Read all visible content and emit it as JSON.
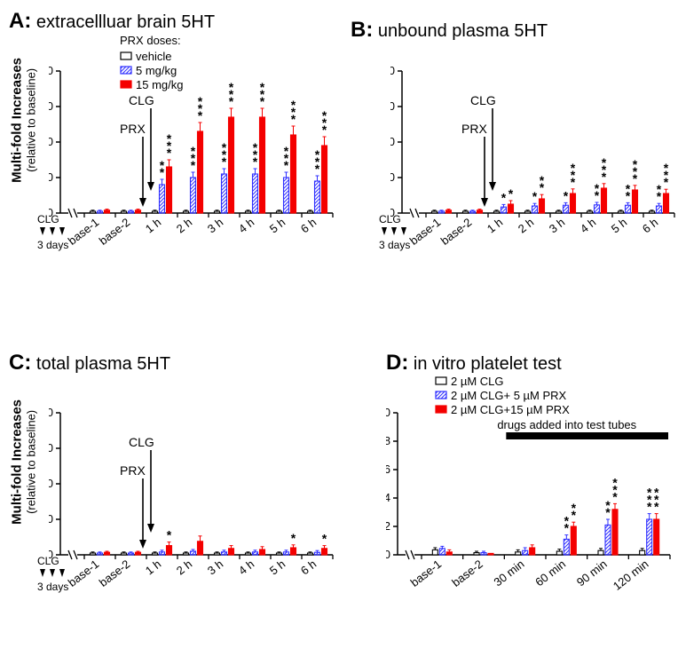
{
  "colors": {
    "white": "#ffffff",
    "black": "#000000",
    "red": "#f40000",
    "blue": "#3030ff"
  },
  "barWidth": 6,
  "groupGap": 3,
  "panelA": {
    "letter": "A:",
    "title": "extracellluar brain 5HT",
    "yLabel": "Multi-fold Increases",
    "ySub": "(relative to baseline)",
    "yMax": 40,
    "yTick": 10,
    "clgLabel": "CLG",
    "daysLabel": "3 days",
    "arrows": {
      "clg": "CLG",
      "prx": "PRX"
    },
    "legend": {
      "title": "PRX doses:",
      "items": [
        {
          "label": "vehicle",
          "type": "open"
        },
        {
          "label": "5 mg/kg",
          "type": "hatch"
        },
        {
          "label": "15 mg/kg",
          "type": "filled"
        }
      ]
    },
    "categories": [
      "base-1",
      "base-2",
      "1 h",
      "2 h",
      "3 h",
      "4 h",
      "5 h",
      "6 h"
    ],
    "series": {
      "vehicle": [
        0.5,
        0.5,
        0.5,
        0.5,
        0.5,
        0.5,
        0.5,
        0.5
      ],
      "low": [
        0.5,
        0.5,
        8,
        10,
        11,
        11,
        10,
        9
      ],
      "high": [
        0.8,
        0.8,
        13,
        23,
        27,
        27,
        22,
        19
      ]
    },
    "errors": {
      "vehicle": [
        0.3,
        0.3,
        0.3,
        0.3,
        0.3,
        0.3,
        0.3,
        0.3
      ],
      "low": [
        0.3,
        0.3,
        1.5,
        1.5,
        1.5,
        1.5,
        1.5,
        1.5
      ],
      "high": [
        0.3,
        0.3,
        2,
        2.5,
        2.5,
        2.5,
        2.5,
        2.5
      ]
    },
    "sig": {
      "low": [
        "",
        "",
        "**",
        "***",
        "***",
        "***",
        "***",
        "***"
      ],
      "high": [
        "",
        "",
        "***",
        "***",
        "***",
        "***",
        "***",
        "***"
      ]
    }
  },
  "panelB": {
    "letter": "B:",
    "title": "unbound plasma 5HT",
    "yLabel": "",
    "ySub": "",
    "yMax": 40,
    "yTick": 10,
    "clgLabel": "CLG",
    "daysLabel": "3 days",
    "arrows": {
      "clg": "CLG",
      "prx": "PRX"
    },
    "categories": [
      "base-1",
      "base-2",
      "1 h",
      "2 h",
      "3 h",
      "4 h",
      "5 h",
      "6 h"
    ],
    "series": {
      "vehicle": [
        0.5,
        0.5,
        0.5,
        0.5,
        0.5,
        0.5,
        0.5,
        0.5
      ],
      "low": [
        0.5,
        0.5,
        1.7,
        2,
        2.2,
        2.3,
        2.2,
        2
      ],
      "high": [
        0.8,
        0.8,
        2.5,
        4,
        5.5,
        7,
        6.5,
        5.5
      ]
    },
    "errors": {
      "vehicle": [
        0.3,
        0.3,
        0.3,
        0.3,
        0.3,
        0.3,
        0.3,
        0.3
      ],
      "low": [
        0.3,
        0.3,
        0.7,
        0.7,
        0.7,
        0.7,
        0.7,
        0.7
      ],
      "high": [
        0.3,
        0.3,
        1,
        1.2,
        1.3,
        1.3,
        1.3,
        1.2
      ]
    },
    "sig": {
      "low": [
        "",
        "",
        "*",
        "*",
        "*",
        "**",
        "**",
        "**"
      ],
      "high": [
        "",
        "",
        "*",
        "**",
        "***",
        "***",
        "***",
        "***"
      ]
    }
  },
  "panelC": {
    "letter": "C:",
    "title": "total plasma 5HT",
    "yLabel": "Multi-fold Increases",
    "ySub": "(relative to baseline)",
    "yMax": 40,
    "yTick": 10,
    "clgLabel": "CLG",
    "daysLabel": "3 days",
    "arrows": {
      "clg": "CLG",
      "prx": "PRX"
    },
    "categories": [
      "base-1",
      "base-2",
      "1 h",
      "2 h",
      "3 h",
      "4 h",
      "5 h",
      "6 h"
    ],
    "series": {
      "vehicle": [
        0.5,
        0.5,
        0.5,
        0.5,
        0.5,
        0.5,
        0.5,
        0.5
      ],
      "low": [
        0.5,
        0.5,
        0.8,
        1,
        0.8,
        0.8,
        0.8,
        0.7
      ],
      "high": [
        0.7,
        0.7,
        2.6,
        3.8,
        1.8,
        1.5,
        2,
        1.8
      ]
    },
    "errors": {
      "vehicle": [
        0.3,
        0.3,
        0.3,
        0.3,
        0.3,
        0.3,
        0.3,
        0.3
      ],
      "low": [
        0.3,
        0.3,
        0.5,
        0.5,
        0.5,
        0.5,
        0.5,
        0.5
      ],
      "high": [
        0.3,
        0.3,
        1,
        1.5,
        0.8,
        0.8,
        0.8,
        0.8
      ]
    },
    "sig": {
      "low": [
        "",
        "",
        "",
        "",
        "",
        "",
        "",
        ""
      ],
      "high": [
        "",
        "",
        "*",
        "",
        "",
        "",
        "*",
        "*"
      ]
    }
  },
  "panelD": {
    "letter": "D:",
    "title": "in vitro platelet test",
    "yLabel": "",
    "ySub": "",
    "yMax": 10,
    "yTick": 2,
    "drugsLabel": "drugs added into test tubes",
    "legend": {
      "items": [
        {
          "label": "2 µM CLG",
          "type": "open"
        },
        {
          "label": "2 µM CLG+ 5 µM PRX",
          "type": "hatch"
        },
        {
          "label": "2 µM CLG+15 µM PRX",
          "type": "filled"
        }
      ]
    },
    "categories": [
      "base-1",
      "base-2",
      "30 min",
      "60 min",
      "90 min",
      "120 min"
    ],
    "series": {
      "vehicle": [
        0.35,
        0.15,
        0.2,
        0.25,
        0.3,
        0.3
      ],
      "low": [
        0.45,
        0.15,
        0.3,
        1.1,
        2.1,
        2.5
      ],
      "high": [
        0.2,
        0.1,
        0.5,
        2.0,
        3.2,
        2.5
      ]
    },
    "errors": {
      "vehicle": [
        0.15,
        0.1,
        0.15,
        0.15,
        0.15,
        0.15
      ],
      "low": [
        0.15,
        0.1,
        0.2,
        0.3,
        0.4,
        0.4
      ],
      "high": [
        0.15,
        0.1,
        0.2,
        0.3,
        0.4,
        0.4
      ]
    },
    "sig": {
      "low": [
        "",
        "",
        "",
        "**",
        "**",
        "***"
      ],
      "high": [
        "",
        "",
        "",
        "**",
        "***",
        "***"
      ]
    }
  }
}
